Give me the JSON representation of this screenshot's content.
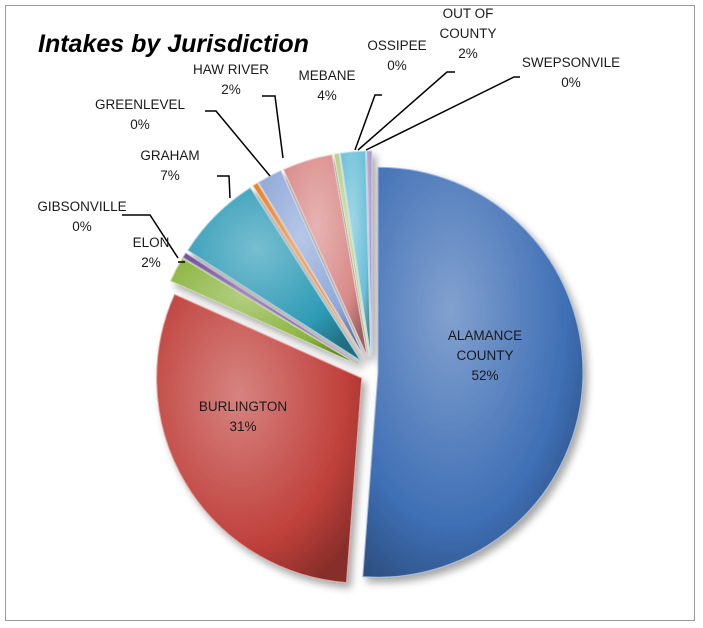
{
  "chart_data": {
    "type": "pie",
    "title": "Intakes by Jurisdiction",
    "exploded": true,
    "slices": [
      {
        "name": "ALAMANCE COUNTY",
        "value": 52,
        "label": "52%",
        "color": "#3f6fb5"
      },
      {
        "name": "BURLINGTON",
        "value": 31,
        "label": "31%",
        "color": "#c0403b"
      },
      {
        "name": "ELON",
        "value": 2,
        "label": "2%",
        "color": "#8ab43d"
      },
      {
        "name": "GIBSONVILLE",
        "value": 0,
        "label": "0%",
        "color": "#6f4f9a"
      },
      {
        "name": "GRAHAM",
        "value": 7,
        "label": "7%",
        "color": "#2e9bb6"
      },
      {
        "name": "GREENLEVEL",
        "value": 0,
        "label": "0%",
        "color": "#e8802b"
      },
      {
        "name": "HAW RIVER",
        "value": 2,
        "label": "2%",
        "color": "#8ea8d8"
      },
      {
        "name": "MEBANE",
        "value": 4,
        "label": "4%",
        "color": "#d98a88"
      },
      {
        "name": "OSSIPEE",
        "value": 0,
        "label": "0%",
        "color": "#b7cf8a"
      },
      {
        "name": "OUT OF COUNTY",
        "value": 2,
        "label": "2%",
        "color": "#6cc0d8"
      },
      {
        "name": "SWEPSONVILE",
        "value": 0,
        "label": "0%",
        "color": "#a994c8"
      }
    ]
  }
}
